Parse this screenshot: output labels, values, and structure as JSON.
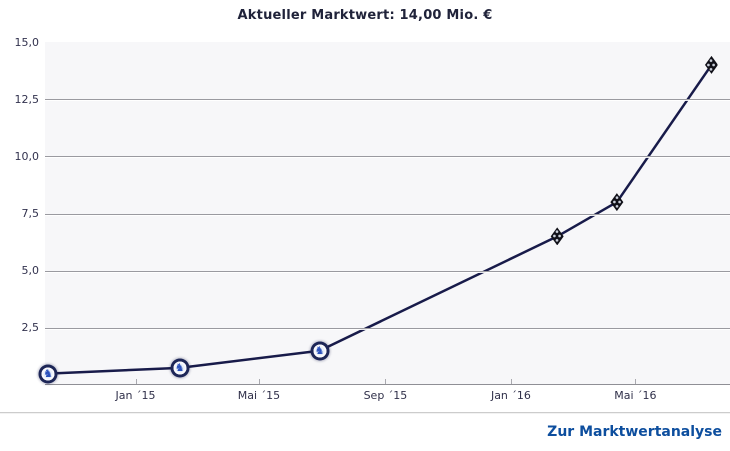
{
  "header": {
    "title": "Aktueller Marktwert: 14,00 Mio. €"
  },
  "footer": {
    "link_label": "Zur Marktwertanalyse"
  },
  "icons": {
    "lion": "♞"
  },
  "colors": {
    "line": "#181b4a",
    "plot_background": "#f7f7f9",
    "gridline": "#9a9aa0",
    "axis_line": "#8f8f95",
    "title_text": "#20233a",
    "tick_text": "#32324e",
    "link_blue": "#0d4e9e",
    "round_crest_ring": "#1d2657",
    "round_crest_center": "#d7e4f6",
    "diamond_crest": "#101018"
  },
  "chart_data": {
    "type": "line",
    "title": "Aktueller Marktwert: 14,00 Mio. €",
    "xlabel": "",
    "ylabel": "",
    "unit": "Mio. €",
    "ylim": [
      0,
      15
    ],
    "grid": true,
    "legend": false,
    "line_color": "#181b4a",
    "x_range": [
      "2014-10-05",
      "2016-08-01"
    ],
    "y_ticks": [
      {
        "value": 2.5,
        "label": "2,5"
      },
      {
        "value": 5,
        "label": "5,0"
      },
      {
        "value": 7.5,
        "label": "7,5"
      },
      {
        "value": 10,
        "label": "10,0"
      },
      {
        "value": 12.5,
        "label": "12,5"
      },
      {
        "value": 15,
        "label": "15,0"
      }
    ],
    "x_ticks": [
      {
        "date": "2015-01-01",
        "label": "Jan ´15"
      },
      {
        "date": "2015-05-01",
        "label": "Mai ´15"
      },
      {
        "date": "2015-09-01",
        "label": "Sep ´15"
      },
      {
        "date": "2016-01-01",
        "label": "Jan ´16"
      },
      {
        "date": "2016-05-01",
        "label": "Mai ´16"
      }
    ],
    "series": [
      {
        "name": "Marktwert",
        "points": [
          {
            "date": "2014-10-08",
            "value": 0.5,
            "marker": "blue-round-club-crest"
          },
          {
            "date": "2015-02-13",
            "value": 0.75,
            "marker": "blue-round-club-crest"
          },
          {
            "date": "2015-06-29",
            "value": 1.5,
            "marker": "blue-round-club-crest"
          },
          {
            "date": "2016-02-15",
            "value": 6.5,
            "marker": "black-diamond-club-crest"
          },
          {
            "date": "2016-04-13",
            "value": 8.0,
            "marker": "black-diamond-club-crest"
          },
          {
            "date": "2016-07-14",
            "value": 14.0,
            "marker": "black-diamond-club-crest"
          }
        ]
      }
    ]
  }
}
